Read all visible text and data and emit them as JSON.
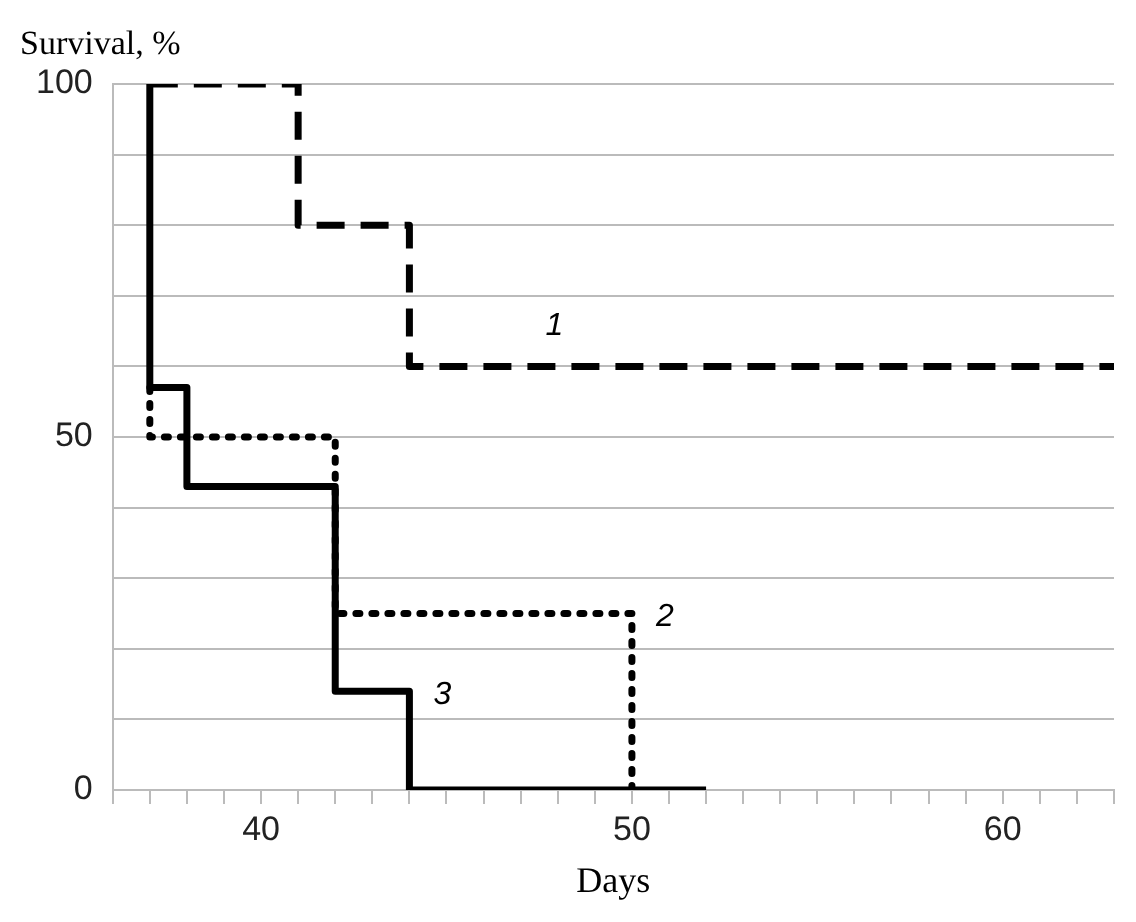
{
  "chart_data": {
    "type": "step",
    "xlabel": "Days",
    "ylabel": "Survival, %",
    "xlim": [
      36,
      63
    ],
    "xticks": [
      {
        "value": 36,
        "label": null
      },
      {
        "value": 37,
        "label": null
      },
      {
        "value": 38,
        "label": null
      },
      {
        "value": 39,
        "label": null
      },
      40,
      {
        "value": 41,
        "label": null
      },
      {
        "value": 42,
        "label": null
      },
      {
        "value": 43,
        "label": null
      },
      {
        "value": 44,
        "label": null
      },
      {
        "value": 45,
        "label": null
      },
      {
        "value": 46,
        "label": null
      },
      {
        "value": 47,
        "label": null
      },
      {
        "value": 48,
        "label": null
      },
      {
        "value": 49,
        "label": null
      },
      50,
      {
        "value": 51,
        "label": null
      },
      {
        "value": 52,
        "label": null
      },
      {
        "value": 53,
        "label": null
      },
      {
        "value": 54,
        "label": null
      },
      {
        "value": 55,
        "label": null
      },
      {
        "value": 56,
        "label": null
      },
      {
        "value": 57,
        "label": null
      },
      {
        "value": 58,
        "label": null
      },
      {
        "value": 59,
        "label": null
      },
      60,
      {
        "value": 61,
        "label": null
      },
      {
        "value": 62,
        "label": null
      },
      {
        "value": 63,
        "label": null
      }
    ],
    "ylim": [
      0,
      100
    ],
    "yticks": [
      0,
      {
        "value": 10,
        "label": null
      },
      {
        "value": 20,
        "label": null
      },
      {
        "value": 30,
        "label": null
      },
      {
        "value": 40,
        "label": null
      },
      50,
      {
        "value": 60,
        "label": null
      },
      {
        "value": 70,
        "label": null
      },
      {
        "value": 80,
        "label": null
      },
      {
        "value": 90,
        "label": null
      },
      100
    ],
    "grid": "y",
    "legend": false,
    "marker": "none",
    "series": [
      {
        "name": "1",
        "color": "#000000",
        "line_style": "dashed",
        "x": [
          37,
          41,
          44,
          63
        ],
        "values": [
          100,
          80,
          60,
          60
        ]
      },
      {
        "name": "2",
        "color": "#000000",
        "line_style": "dotted",
        "x": [
          37,
          37,
          42,
          50
        ],
        "values": [
          57,
          50,
          25,
          0
        ]
      },
      {
        "name": "3",
        "color": "#000000",
        "line_style": "solid",
        "x": [
          37,
          37,
          38,
          42,
          44,
          52
        ],
        "values": [
          100,
          57,
          43,
          14,
          0,
          0
        ]
      }
    ]
  }
}
